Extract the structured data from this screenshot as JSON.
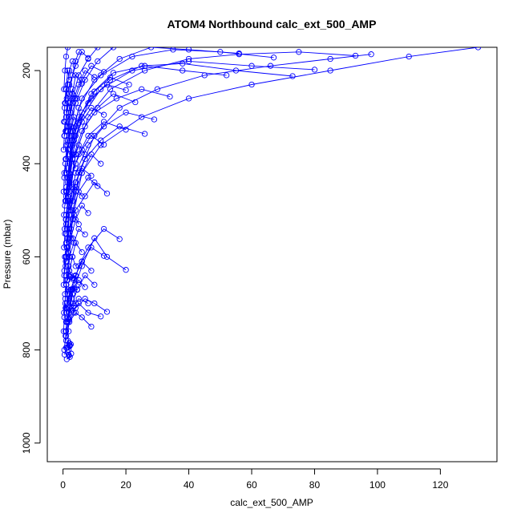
{
  "chart_data": {
    "type": "line",
    "title": "ATOM4 Northbound calc_ext_500_AMP",
    "xlabel": "calc_ext_500_AMP",
    "ylabel": "Pressure (mbar)",
    "xlim": [
      -5,
      138
    ],
    "ylim": [
      1040,
      150
    ],
    "y_inverted": true,
    "x_ticks": [
      0,
      20,
      40,
      60,
      80,
      100,
      120
    ],
    "y_ticks": [
      200,
      400,
      600,
      800,
      1000
    ],
    "x_tick_labels": [
      "0",
      "20",
      "40",
      "60",
      "80",
      "100",
      "120"
    ],
    "y_tick_labels": [
      "200",
      "400",
      "600",
      "800",
      "1000"
    ],
    "grid": false,
    "legend": "none",
    "series_color": "#0000ff",
    "series": [
      {
        "x": [
          132,
          110,
          85,
          60,
          40,
          25,
          12,
          6,
          3,
          1.5
        ],
        "y": [
          150,
          170,
          200,
          230,
          260,
          300,
          360,
          420,
          520,
          650
        ]
      },
      {
        "x": [
          98,
          85,
          66,
          45,
          30,
          18,
          10,
          5,
          2
        ],
        "y": [
          165,
          175,
          190,
          210,
          240,
          280,
          340,
          420,
          560
        ]
      },
      {
        "x": [
          93,
          75,
          56,
          40,
          26,
          15,
          8,
          4,
          2,
          1
        ],
        "y": [
          168,
          160,
          165,
          175,
          200,
          240,
          300,
          380,
          480,
          600
        ]
      },
      {
        "x": [
          80,
          60,
          40,
          22,
          12,
          6,
          3,
          1.5
        ],
        "y": [
          198,
          190,
          180,
          200,
          240,
          300,
          380,
          480
        ]
      },
      {
        "x": [
          73,
          55,
          38,
          25,
          15,
          8,
          4,
          2
        ],
        "y": [
          212,
          200,
          185,
          190,
          220,
          270,
          340,
          440
        ]
      },
      {
        "x": [
          67,
          50,
          35,
          22,
          12,
          6,
          3,
          1.5
        ],
        "y": [
          172,
          160,
          155,
          170,
          210,
          260,
          330,
          430
        ]
      },
      {
        "x": [
          56,
          40,
          28,
          18,
          10,
          5,
          2.5,
          1
        ],
        "y": [
          163,
          155,
          150,
          175,
          220,
          280,
          360,
          460
        ]
      },
      {
        "x": [
          52,
          38,
          26,
          16,
          9,
          4,
          2
        ],
        "y": [
          210,
          200,
          190,
          205,
          250,
          320,
          420
        ]
      },
      {
        "x": [
          34,
          25,
          17,
          10,
          6,
          3,
          1.5
        ],
        "y": [
          256,
          240,
          260,
          290,
          330,
          390,
          470
        ]
      },
      {
        "x": [
          29,
          20,
          13,
          8,
          4,
          2
        ],
        "y": [
          305,
          290,
          320,
          360,
          420,
          500
        ]
      },
      {
        "x": [
          26,
          18,
          12,
          7,
          4,
          2,
          1
        ],
        "y": [
          336,
          320,
          350,
          390,
          440,
          510,
          600
        ]
      },
      {
        "x": [
          23,
          16,
          11,
          7,
          4,
          2
        ],
        "y": [
          268,
          250,
          280,
          320,
          380,
          460
        ]
      },
      {
        "x": [
          21,
          15,
          10,
          6,
          3,
          1.5
        ],
        "y": [
          230,
          215,
          245,
          290,
          350,
          430
        ]
      },
      {
        "x": [
          20,
          14,
          9,
          5,
          3,
          1.5
        ],
        "y": [
          242,
          230,
          260,
          300,
          360,
          440
        ]
      },
      {
        "x": [
          20,
          13,
          8,
          5,
          2,
          1
        ],
        "y": [
          327,
          310,
          340,
          380,
          440,
          520
        ]
      },
      {
        "x": [
          20,
          14,
          10,
          6,
          3,
          1.5
        ],
        "y": [
          628,
          600,
          560,
          620,
          680,
          740
        ]
      },
      {
        "x": [
          18,
          13,
          8,
          5,
          3,
          1.5
        ],
        "y": [
          562,
          540,
          580,
          620,
          670,
          730
        ]
      },
      {
        "x": [
          16,
          11,
          7,
          4,
          2,
          1
        ],
        "y": [
          150,
          180,
          220,
          270,
          340,
          420
        ]
      },
      {
        "x": [
          14,
          10,
          7,
          4,
          2,
          1
        ],
        "y": [
          718,
          700,
          690,
          710,
          740,
          780
        ]
      },
      {
        "x": [
          14,
          10,
          7,
          4,
          2.5,
          1.5
        ],
        "y": [
          464,
          440,
          470,
          500,
          540,
          590
        ]
      },
      {
        "x": [
          13,
          9,
          6,
          4,
          2,
          1
        ],
        "y": [
          598,
          580,
          610,
          640,
          680,
          720
        ]
      },
      {
        "x": [
          13,
          9,
          6,
          4,
          2,
          1
        ],
        "y": [
          359,
          340,
          370,
          400,
          450,
          510
        ]
      },
      {
        "x": [
          13,
          9,
          6,
          3.5,
          2,
          1
        ],
        "y": [
          295,
          280,
          310,
          350,
          400,
          470
        ]
      },
      {
        "x": [
          13,
          9,
          6,
          4,
          2,
          1
        ],
        "y": [
          203,
          190,
          220,
          260,
          320,
          390
        ]
      },
      {
        "x": [
          12,
          9,
          6,
          4,
          2,
          1
        ],
        "y": [
          400,
          380,
          420,
          460,
          510,
          570
        ]
      },
      {
        "x": [
          12,
          8,
          5,
          3,
          2,
          1
        ],
        "y": [
          728,
          720,
          700,
          715,
          735,
          760
        ]
      },
      {
        "x": [
          11,
          8,
          5,
          3,
          1.5
        ],
        "y": [
          448,
          430,
          460,
          500,
          560
        ]
      },
      {
        "x": [
          11,
          8,
          5,
          3,
          1.5
        ],
        "y": [
          150,
          175,
          210,
          260,
          320
        ]
      },
      {
        "x": [
          10,
          7,
          5,
          3,
          1.5
        ],
        "y": [
          214,
          200,
          230,
          270,
          330
        ]
      },
      {
        "x": [
          10,
          7,
          4.5,
          3,
          1.5
        ],
        "y": [
          660,
          640,
          670,
          700,
          740
        ]
      },
      {
        "x": [
          9,
          6,
          4,
          2.5,
          1.2
        ],
        "y": [
          630,
          610,
          640,
          670,
          700
        ]
      },
      {
        "x": [
          9,
          6,
          4,
          2,
          1
        ],
        "y": [
          750,
          730,
          720,
          740,
          770
        ]
      },
      {
        "x": [
          9,
          6,
          4,
          2,
          1
        ],
        "y": [
          426,
          410,
          440,
          480,
          530
        ]
      },
      {
        "x": [
          8,
          6,
          4,
          2.5,
          1.2
        ],
        "y": [
          506,
          490,
          520,
          560,
          610
        ]
      },
      {
        "x": [
          8,
          6,
          4,
          2,
          1
        ],
        "y": [
          173,
          160,
          190,
          230,
          290
        ]
      },
      {
        "x": [
          8,
          5,
          3.5,
          2,
          1
        ],
        "y": [
          700,
          690,
          705,
          720,
          740
        ]
      },
      {
        "x": [
          7,
          5,
          3.5,
          2,
          1
        ],
        "y": [
          552,
          540,
          570,
          600,
          640
        ]
      },
      {
        "x": [
          7,
          5,
          3,
          2,
          1
        ],
        "y": [
          380,
          360,
          390,
          430,
          480
        ]
      },
      {
        "x": [
          7,
          5,
          3,
          2,
          1
        ],
        "y": [
          665,
          650,
          670,
          690,
          710
        ]
      },
      {
        "x": [
          6,
          4,
          3,
          2,
          1
        ],
        "y": [
          228,
          210,
          250,
          300,
          360
        ]
      },
      {
        "x": [
          6,
          4,
          3,
          2,
          1
        ],
        "y": [
          470,
          450,
          480,
          510,
          550
        ]
      },
      {
        "x": [
          6,
          4,
          3,
          2,
          1
        ],
        "y": [
          590,
          570,
          600,
          630,
          660
        ]
      },
      {
        "x": [
          5,
          4,
          3,
          2,
          1
        ],
        "y": [
          160,
          180,
          210,
          250,
          300
        ]
      },
      {
        "x": [
          5,
          3.5,
          2.5,
          1.5,
          1
        ],
        "y": [
          312,
          300,
          330,
          370,
          420
        ]
      },
      {
        "x": [
          5,
          3.5,
          2.5,
          1.5,
          0.8
        ],
        "y": [
          660,
          650,
          670,
          690,
          710
        ]
      },
      {
        "x": [
          5,
          3.5,
          2,
          1.2
        ],
        "y": [
          530,
          510,
          540,
          580
        ]
      },
      {
        "x": [
          4.5,
          3,
          2,
          1
        ],
        "y": [
          260,
          240,
          280,
          330
        ]
      },
      {
        "x": [
          4,
          3,
          2,
          1
        ],
        "y": [
          700,
          680,
          710,
          740
        ]
      },
      {
        "x": [
          4,
          3,
          2,
          1
        ],
        "y": [
          620,
          600,
          630,
          660
        ]
      },
      {
        "x": [
          4,
          3,
          2,
          1
        ],
        "y": [
          410,
          390,
          420,
          460
        ]
      },
      {
        "x": [
          3.5,
          2.5,
          1.5,
          0.8
        ],
        "y": [
          720,
          700,
          730,
          760
        ]
      },
      {
        "x": [
          3.5,
          2.5,
          1.5,
          0.8
        ],
        "y": [
          340,
          320,
          350,
          390
        ]
      },
      {
        "x": [
          3,
          2,
          1.5,
          0.8
        ],
        "y": [
          180,
          200,
          230,
          270
        ]
      },
      {
        "x": [
          3,
          2,
          1.2,
          0.6
        ],
        "y": [
          560,
          540,
          570,
          600
        ]
      },
      {
        "x": [
          3,
          2,
          1.2,
          0.6
        ],
        "y": [
          450,
          430,
          460,
          490
        ]
      },
      {
        "x": [
          2.5,
          1.8,
          1.2,
          0.6
        ],
        "y": [
          640,
          620,
          650,
          680
        ]
      },
      {
        "x": [
          2.5,
          1.8,
          1,
          0.5
        ],
        "y": [
          290,
          270,
          300,
          340
        ]
      },
      {
        "x": [
          2.5,
          1.8,
          1,
          0.5
        ],
        "y": [
          500,
          480,
          510,
          540
        ]
      },
      {
        "x": [
          2,
          1.5,
          1,
          0.5
        ],
        "y": [
          790,
          780,
          795,
          810
        ]
      },
      {
        "x": [
          2,
          1.5,
          1,
          0.5
        ],
        "y": [
          220,
          200,
          240,
          280
        ]
      },
      {
        "x": [
          2,
          1.4,
          0.9,
          0.4
        ],
        "y": [
          380,
          360,
          390,
          420
        ]
      },
      {
        "x": [
          2,
          1.4,
          0.9,
          0.4
        ],
        "y": [
          600,
          580,
          610,
          640
        ]
      },
      {
        "x": [
          1.8,
          1.2,
          0.8,
          0.4
        ],
        "y": [
          760,
          740,
          770,
          800
        ]
      },
      {
        "x": [
          1.5,
          1.1,
          0.7,
          0.3
        ],
        "y": [
          470,
          450,
          480,
          510
        ]
      },
      {
        "x": [
          1.5,
          1.1,
          0.7,
          0.3
        ],
        "y": [
          680,
          660,
          690,
          720
        ]
      },
      {
        "x": [
          1.5,
          1,
          0.6,
          0.3
        ],
        "y": [
          150,
          170,
          200,
          240
        ]
      },
      {
        "x": [
          1.2,
          0.9,
          0.6,
          0.3
        ],
        "y": [
          260,
          240,
          270,
          310
        ]
      },
      {
        "x": [
          1.2,
          0.9,
          0.6,
          0.3
        ],
        "y": [
          540,
          520,
          550,
          580
        ]
      },
      {
        "x": [
          1,
          0.7,
          0.4,
          0.2
        ],
        "y": [
          720,
          700,
          730,
          760
        ]
      },
      {
        "x": [
          1,
          0.7,
          0.4,
          0.2
        ],
        "y": [
          420,
          400,
          430,
          460
        ]
      },
      {
        "x": [
          0.8,
          0.6,
          0.4,
          0.2
        ],
        "y": [
          330,
          310,
          340,
          370
        ]
      },
      {
        "x": [
          0.8,
          0.6,
          0.4,
          0.2
        ],
        "y": [
          620,
          600,
          630,
          660
        ]
      },
      {
        "x": [
          2,
          2.2,
          1.5,
          2.5,
          1.8,
          2.1
        ],
        "y": [
          785,
          790,
          795,
          788,
          800,
          792
        ]
      },
      {
        "x": [
          1.5,
          1.8,
          2.2,
          1.2,
          2.6,
          1.9
        ],
        "y": [
          805,
          810,
          815,
          820,
          808,
          812
        ]
      },
      {
        "x": [
          1,
          2,
          3,
          4,
          2.5,
          3.5
        ],
        "y": [
          640,
          642,
          645,
          641,
          643,
          646
        ]
      },
      {
        "x": [
          1.5,
          2.5,
          3.5,
          4.5,
          3,
          2
        ],
        "y": [
          670,
          672,
          668,
          671,
          669,
          673
        ]
      }
    ]
  }
}
